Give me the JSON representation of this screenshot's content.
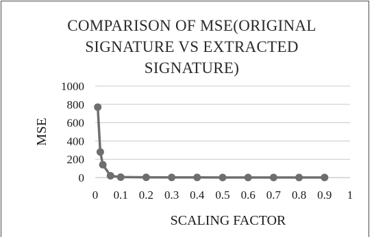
{
  "chart_data": {
    "type": "line",
    "title_lines": [
      "COMPARISON OF MSE(ORIGINAL",
      "SIGNATURE VS EXTRACTED",
      "SIGNATURE)"
    ],
    "xlabel": "SCALING FACTOR",
    "ylabel": "MSE",
    "xlim": [
      0,
      1
    ],
    "ylim": [
      0,
      1000
    ],
    "x_ticks": [
      "0",
      "0.1",
      "0.2",
      "0.3",
      "0.4",
      "0.5",
      "0.6",
      "0.7",
      "0.8",
      "0.9",
      "1"
    ],
    "y_ticks": [
      "0",
      "200",
      "400",
      "600",
      "800",
      "1000"
    ],
    "grid": "horizontal",
    "legend": "none",
    "series": [
      {
        "color": "#6e6e6e",
        "x": [
          0.01,
          0.02,
          0.03,
          0.06,
          0.1,
          0.2,
          0.3,
          0.4,
          0.5,
          0.6,
          0.7,
          0.8,
          0.9
        ],
        "y": [
          770,
          280,
          140,
          20,
          5,
          3,
          2,
          2,
          1,
          1,
          1,
          1,
          1
        ]
      }
    ]
  }
}
